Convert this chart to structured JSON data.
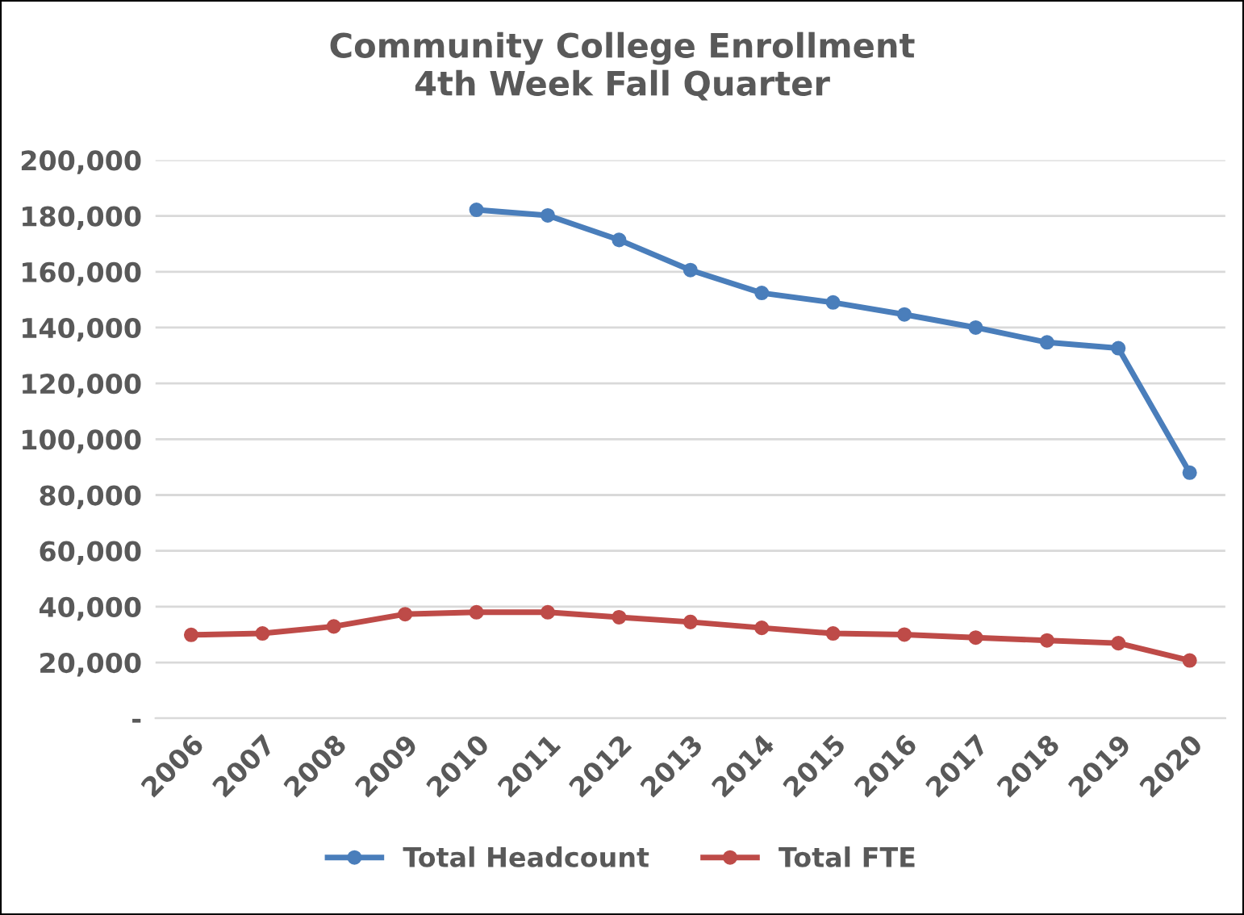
{
  "chart_data": {
    "type": "line",
    "title": "Community College Enrollment\n4th Week Fall Quarter",
    "categories": [
      "2006",
      "2007",
      "2008",
      "2009",
      "2010",
      "2011",
      "2012",
      "2013",
      "2014",
      "2015",
      "2016",
      "2017",
      "2018",
      "2019",
      "2020"
    ],
    "series": [
      {
        "name": "Total Headcount",
        "color": "#4a7ebb",
        "values": [
          null,
          null,
          null,
          null,
          182200,
          180200,
          171400,
          160600,
          152400,
          149000,
          144700,
          140000,
          134700,
          132600,
          88000
        ]
      },
      {
        "name": "Total FTE",
        "color": "#be4b48",
        "values": [
          29900,
          30400,
          32900,
          37300,
          38000,
          38000,
          36200,
          34500,
          32400,
          30400,
          30000,
          28900,
          27900,
          26900,
          20700
        ]
      }
    ],
    "ylim": [
      0,
      200000
    ],
    "yticks": [
      {
        "value": 0,
        "label": "-"
      },
      {
        "value": 20000,
        "label": "20,000"
      },
      {
        "value": 40000,
        "label": "40,000"
      },
      {
        "value": 60000,
        "label": "60,000"
      },
      {
        "value": 80000,
        "label": "80,000"
      },
      {
        "value": 100000,
        "label": "100,000"
      },
      {
        "value": 120000,
        "label": "120,000"
      },
      {
        "value": 140000,
        "label": "140,000"
      },
      {
        "value": 160000,
        "label": "160,000"
      },
      {
        "value": 180000,
        "label": "180,000"
      },
      {
        "value": 200000,
        "label": "200,000"
      }
    ],
    "grid": "y",
    "legend": "bottom",
    "marker": "circle",
    "line_style": "solid"
  }
}
